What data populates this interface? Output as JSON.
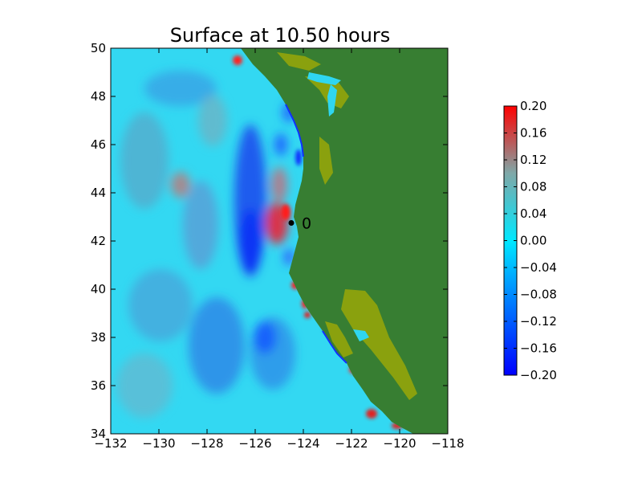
{
  "title": "Surface at 10.50 hours",
  "map": {
    "x_ticks": [
      "−132",
      "−130",
      "−128",
      "−126",
      "−124",
      "−122",
      "−120",
      "−118"
    ],
    "y_ticks": [
      "50",
      "48",
      "46",
      "44",
      "42",
      "40",
      "38",
      "36",
      "34"
    ],
    "x_range": [
      -132,
      -118
    ],
    "y_range": [
      34,
      50
    ],
    "gauge": {
      "label": "0",
      "lon": -124.5,
      "lat": 42.75
    }
  },
  "colorbar": {
    "ticks": [
      "0.20",
      "0.16",
      "0.12",
      "0.08",
      "0.04",
      "0.00",
      "−0.04",
      "−0.08",
      "−0.12",
      "−0.16",
      "−0.20"
    ],
    "range": [
      -0.2,
      0.2
    ],
    "colors": [
      "#0000ff",
      "#0073ff",
      "#00e8ff",
      "#7fa8a8",
      "#ff0000"
    ]
  },
  "colors": {
    "land": "#377e32",
    "lowland": "#8aa10e",
    "sea_base": "#2fd6f0",
    "low_anomaly": "#0050ff",
    "high_anomaly": "#e02020"
  }
}
